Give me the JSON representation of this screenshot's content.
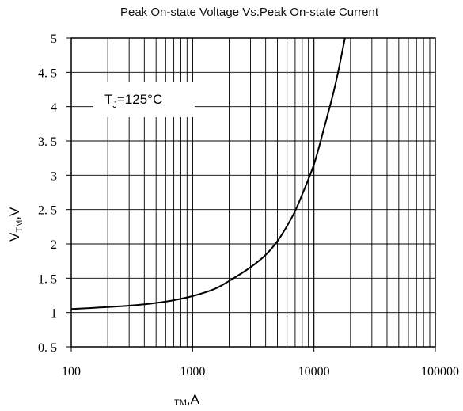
{
  "chart_data": {
    "type": "line",
    "title": "Peak On-state Voltage Vs.Peak On-state Current",
    "xlabel": {
      "sub": "TM",
      "main": ",A"
    },
    "ylabel": {
      "main": "V",
      "sub": "TM",
      "unit": ",V"
    },
    "annotation": {
      "main": "T",
      "sub": "J",
      "rest": "=125°C"
    },
    "x_scale": "log",
    "xlim": [
      100,
      100000
    ],
    "ylim": [
      0.5,
      5
    ],
    "grid": true,
    "x_ticks": [
      {
        "value": 100,
        "label": "100"
      },
      {
        "value": 1000,
        "label": "1000"
      },
      {
        "value": 10000,
        "label": "10000"
      },
      {
        "value": 100000,
        "label": "100000"
      }
    ],
    "y_ticks": [
      {
        "value": 0.5,
        "label": "0. 5"
      },
      {
        "value": 1,
        "label": "1"
      },
      {
        "value": 1.5,
        "label": "1. 5"
      },
      {
        "value": 2,
        "label": "2"
      },
      {
        "value": 2.5,
        "label": "2. 5"
      },
      {
        "value": 3,
        "label": "3"
      },
      {
        "value": 3.5,
        "label": "3. 5"
      },
      {
        "value": 4,
        "label": "4"
      },
      {
        "value": 4.5,
        "label": "4. 5"
      },
      {
        "value": 5,
        "label": "5"
      }
    ],
    "series": [
      {
        "x": [
          100,
          200,
          300,
          400,
          500,
          700,
          1000,
          1500,
          2000,
          3000,
          4000,
          5000,
          6000,
          7000,
          8000,
          10000,
          12000,
          15000,
          18000
        ],
        "y": [
          1.05,
          1.08,
          1.1,
          1.12,
          1.14,
          1.18,
          1.24,
          1.34,
          1.46,
          1.66,
          1.84,
          2.04,
          2.26,
          2.48,
          2.72,
          3.16,
          3.66,
          4.32,
          5.0
        ]
      }
    ],
    "color": "#000000"
  }
}
